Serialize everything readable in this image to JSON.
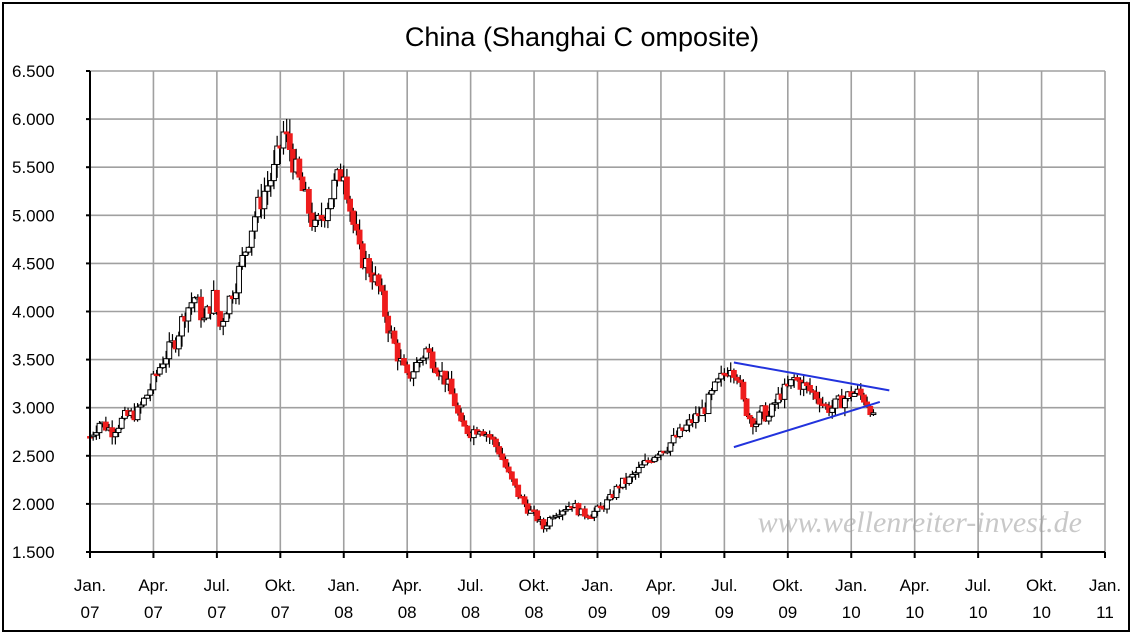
{
  "chart_data": {
    "type": "candlestick",
    "title": "China (Shanghai C omposite)",
    "xlabel": "",
    "ylabel": "",
    "ylim": [
      1500,
      6500
    ],
    "ytick_values": [
      1500,
      2000,
      2500,
      3000,
      3500,
      4000,
      4500,
      5000,
      5500,
      6000,
      6500
    ],
    "ytick_labels": [
      "1.500",
      "2.000",
      "2.500",
      "3.000",
      "3.500",
      "4.000",
      "4.500",
      "5.000",
      "5.500",
      "6.000",
      "6.500"
    ],
    "xtick_labels": [
      [
        "Jan.",
        "07"
      ],
      [
        "Apr.",
        "07"
      ],
      [
        "Jul.",
        "07"
      ],
      [
        "Okt.",
        "07"
      ],
      [
        "Jan.",
        "08"
      ],
      [
        "Apr.",
        "08"
      ],
      [
        "Jul.",
        "08"
      ],
      [
        "Okt.",
        "08"
      ],
      [
        "Jan.",
        "09"
      ],
      [
        "Apr.",
        "09"
      ],
      [
        "Jul.",
        "09"
      ],
      [
        "Okt.",
        "09"
      ],
      [
        "Jan.",
        "10"
      ],
      [
        "Apr.",
        "10"
      ],
      [
        "Jul.",
        "10"
      ],
      [
        "Okt.",
        "10"
      ],
      [
        "Jan.",
        "11"
      ]
    ],
    "grid": true,
    "colors": {
      "up": "#000000",
      "down": "#ee1c1c",
      "trendline": "#2233dd",
      "grid": "#a0a0a0"
    },
    "watermark": "www.wellenreiter-invest.de",
    "series": [
      {
        "type": "price_path",
        "points": [
          [
            0.0,
            2700
          ],
          [
            0.15,
            2850
          ],
          [
            0.35,
            2760
          ],
          [
            0.55,
            2900
          ],
          [
            0.75,
            2950
          ],
          [
            0.95,
            3200
          ],
          [
            1.15,
            3500
          ],
          [
            1.35,
            3700
          ],
          [
            1.5,
            4000
          ],
          [
            1.65,
            4150
          ],
          [
            1.8,
            3900
          ],
          [
            1.95,
            4150
          ],
          [
            2.05,
            3850
          ],
          [
            2.15,
            4050
          ],
          [
            2.3,
            4300
          ],
          [
            2.45,
            4650
          ],
          [
            2.6,
            5000
          ],
          [
            2.75,
            5250
          ],
          [
            2.9,
            5450
          ],
          [
            3.05,
            5850
          ],
          [
            3.15,
            5700
          ],
          [
            3.25,
            5450
          ],
          [
            3.4,
            5150
          ],
          [
            3.55,
            4850
          ],
          [
            3.7,
            5050
          ],
          [
            3.85,
            5300
          ],
          [
            4.0,
            5500
          ],
          [
            4.12,
            5000
          ],
          [
            4.25,
            4600
          ],
          [
            4.4,
            4450
          ],
          [
            4.55,
            4250
          ],
          [
            4.7,
            3850
          ],
          [
            4.85,
            3550
          ],
          [
            5.0,
            3300
          ],
          [
            5.15,
            3450
          ],
          [
            5.3,
            3600
          ],
          [
            5.45,
            3450
          ],
          [
            5.6,
            3300
          ],
          [
            5.75,
            3050
          ],
          [
            5.85,
            2800
          ],
          [
            6.0,
            2750
          ],
          [
            6.15,
            2800
          ],
          [
            6.3,
            2700
          ],
          [
            6.45,
            2550
          ],
          [
            6.6,
            2300
          ],
          [
            6.75,
            2100
          ],
          [
            6.9,
            1950
          ],
          [
            7.05,
            1850
          ],
          [
            7.15,
            1750
          ],
          [
            7.3,
            1900
          ],
          [
            7.45,
            1950
          ],
          [
            7.6,
            2000
          ],
          [
            7.75,
            1900
          ],
          [
            7.9,
            1900
          ],
          [
            8.05,
            1950
          ],
          [
            8.2,
            2050
          ],
          [
            8.35,
            2200
          ],
          [
            8.5,
            2250
          ],
          [
            8.65,
            2350
          ],
          [
            8.8,
            2450
          ],
          [
            8.95,
            2550
          ],
          [
            9.1,
            2600
          ],
          [
            9.25,
            2700
          ],
          [
            9.4,
            2800
          ],
          [
            9.55,
            2900
          ],
          [
            9.7,
            3000
          ],
          [
            9.85,
            3200
          ],
          [
            10.0,
            3350
          ],
          [
            10.1,
            3450
          ],
          [
            10.2,
            3350
          ],
          [
            10.3,
            3050
          ],
          [
            10.4,
            2900
          ],
          [
            10.5,
            2850
          ],
          [
            10.6,
            2950
          ],
          [
            10.7,
            2900
          ],
          [
            10.8,
            3050
          ],
          [
            10.9,
            3150
          ],
          [
            11.0,
            3200
          ],
          [
            11.1,
            3300
          ],
          [
            11.2,
            3250
          ],
          [
            11.3,
            3200
          ],
          [
            11.4,
            3150
          ],
          [
            11.5,
            3100
          ],
          [
            11.6,
            3000
          ],
          [
            11.7,
            3000
          ],
          [
            11.8,
            3050
          ],
          [
            11.9,
            3100
          ],
          [
            12.0,
            3150
          ],
          [
            12.1,
            3150
          ],
          [
            12.2,
            3100
          ],
          [
            12.3,
            3000
          ],
          [
            12.35,
            2880
          ]
        ]
      },
      {
        "type": "trendline",
        "name": "",
        "points": [
          [
            10.15,
            3470
          ],
          [
            12.6,
            3180
          ]
        ]
      },
      {
        "type": "trendline",
        "name": "",
        "points": [
          [
            10.15,
            2590
          ],
          [
            12.45,
            3060
          ]
        ]
      }
    ]
  }
}
